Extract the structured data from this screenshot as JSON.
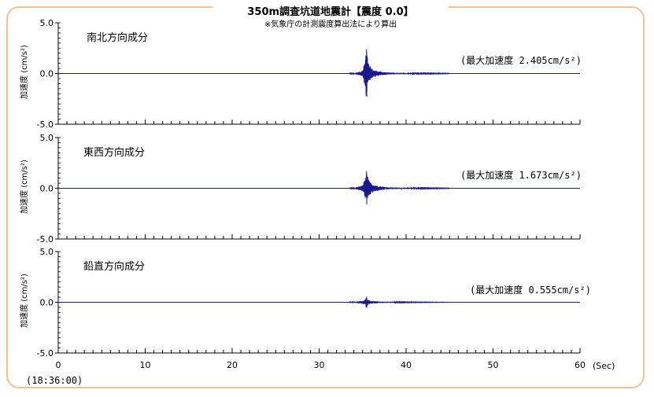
{
  "header": {
    "title": "350m調査坑道地震計【震度 0.0】",
    "subtitle": "※気象庁の計測震度算出法により算出"
  },
  "footer": {
    "time": "(18:36:00)",
    "x_unit": "(Sec)"
  },
  "chart_data": [
    {
      "type": "line",
      "title": "南北方向成分",
      "ylabel": "加速度 (cm/s²)",
      "peak_label": "(最大加速度 2.405cm/s²)",
      "ylim": [
        -5.0,
        5.0
      ],
      "yticks": [
        "5.0",
        "0.0",
        "-5.0"
      ],
      "xlim": [
        0,
        60
      ],
      "series": [
        {
          "x": [
            0,
            34.0,
            35.0,
            35.3,
            35.4,
            35.5,
            35.6,
            35.8,
            36.2,
            37.0,
            38.0,
            40.0,
            45.0,
            60.0
          ],
          "amplitude": [
            0,
            0.03,
            0.3,
            1.4,
            2.405,
            -2.3,
            1.2,
            0.8,
            0.4,
            0.2,
            0.1,
            0.05,
            0.02,
            0
          ]
        }
      ]
    },
    {
      "type": "line",
      "title": "東西方向成分",
      "ylabel": "加速度 (cm/s²)",
      "peak_label": "(最大加速度 1.673cm/s²)",
      "ylim": [
        -5.0,
        5.0
      ],
      "yticks": [
        "5.0",
        "0.0",
        "-5.0"
      ],
      "xlim": [
        0,
        60
      ],
      "series": [
        {
          "x": [
            0,
            34.0,
            35.0,
            35.3,
            35.4,
            35.5,
            35.6,
            35.8,
            36.2,
            37.0,
            38.0,
            40.0,
            45.0,
            60.0
          ],
          "amplitude": [
            0,
            0.03,
            0.3,
            1.0,
            1.673,
            -1.6,
            1.1,
            0.7,
            0.4,
            0.2,
            0.1,
            0.05,
            0.02,
            0
          ]
        }
      ]
    },
    {
      "type": "line",
      "title": "鉛直方向成分",
      "ylabel": "加速度 (cm/s²)",
      "peak_label": "(最大加速度 0.555cm/s²)",
      "ylim": [
        -5.0,
        5.0
      ],
      "yticks": [
        "5.0",
        "0.0",
        "-5.0"
      ],
      "xlim": [
        0,
        60
      ],
      "series": [
        {
          "x": [
            0,
            34.0,
            35.0,
            35.3,
            35.4,
            35.5,
            35.6,
            35.8,
            36.2,
            37.0,
            38.0,
            40.0,
            45.0,
            60.0
          ],
          "amplitude": [
            0,
            0.05,
            0.15,
            0.3,
            0.555,
            -0.5,
            0.3,
            0.2,
            0.12,
            0.08,
            0.05,
            0.03,
            0.01,
            0
          ]
        }
      ]
    }
  ],
  "x_axis": {
    "ticks": [
      0,
      10,
      20,
      30,
      40,
      50,
      60
    ],
    "tick_labels": [
      "0",
      "10",
      "20",
      "30",
      "40",
      "50",
      "60"
    ],
    "minor_step": 1
  },
  "colors": {
    "frame": "#f2c396",
    "trace": "#1a1a8c",
    "axis": "#000000"
  }
}
